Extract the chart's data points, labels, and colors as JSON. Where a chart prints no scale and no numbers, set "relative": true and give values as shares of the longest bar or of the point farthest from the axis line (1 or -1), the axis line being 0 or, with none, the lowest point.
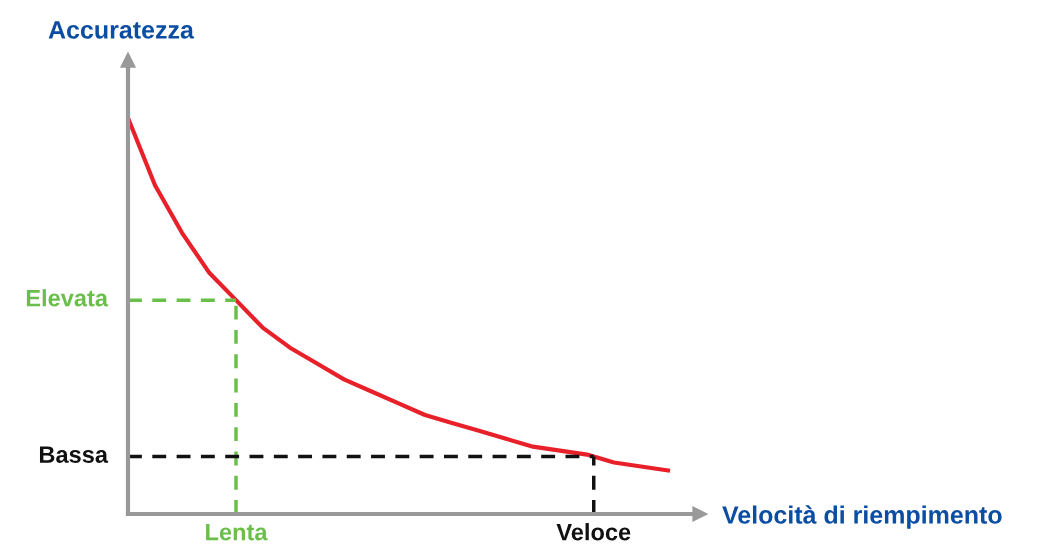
{
  "chart_data": {
    "type": "line",
    "relative": true,
    "xlabel": "Velocità di riempimento",
    "ylabel": "Accuratezza",
    "categories": [
      null,
      null,
      null,
      null,
      null,
      null,
      null,
      null,
      null,
      null,
      null,
      null,
      null,
      null,
      null,
      null,
      null,
      null,
      null,
      null,
      null
    ],
    "series": [
      {
        "color": "#e8202a",
        "values": [
          1.0,
          0.83,
          0.71,
          0.61,
          0.54,
          0.47,
          0.42,
          0.38,
          0.34,
          0.31,
          0.28,
          0.25,
          0.23,
          0.21,
          0.19,
          0.17,
          0.16,
          0.15,
          0.13,
          0.12,
          0.11
        ]
      }
    ],
    "ref_lines": [
      {
        "axis": "y",
        "value": 0.54,
        "label": "Elevata",
        "color": "#6abf4b",
        "line_style": "dashed"
      },
      {
        "axis": "y",
        "value": 0.145,
        "label": "Bassa",
        "color": "#111111",
        "line_style": "dashed"
      }
    ],
    "annotations": [
      {
        "text": "Lenta",
        "y": 0.54
      },
      {
        "text": "Veloce",
        "y": 0.145
      }
    ],
    "legend": false,
    "marker": "none",
    "line_style": "solid"
  }
}
